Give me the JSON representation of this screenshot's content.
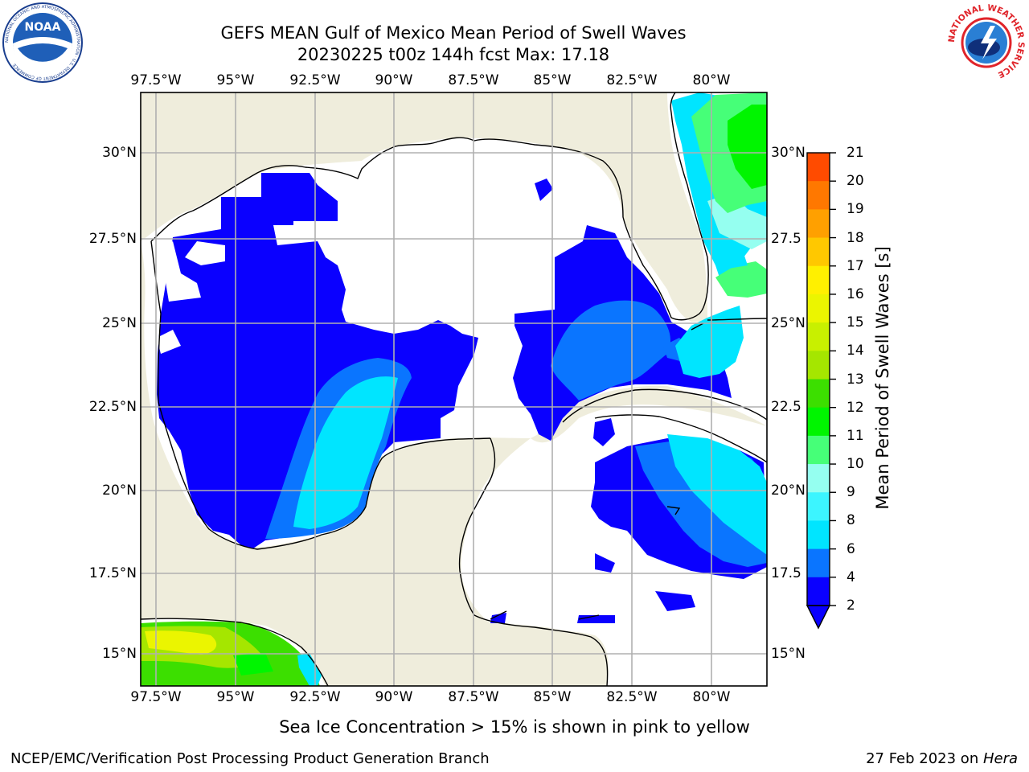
{
  "header": {
    "title_line1": "GEFS MEAN Gulf of Mexico Mean Period of Swell Waves",
    "title_line2": "20230225 t00z 144h fcst   Max: 17.18"
  },
  "logos": {
    "noaa_text": "NOAA",
    "noaa_ring_text": "NATIONAL OCEANIC AND ATMOSPHERIC ADMINISTRATION · U.S. DEPARTMENT OF COMMERCE",
    "nws_ring_text": "NATIONAL WEATHER SERVICE"
  },
  "map": {
    "lon_labels": [
      "97.5°W",
      "95°W",
      "92.5°W",
      "90°W",
      "87.5°W",
      "85°W",
      "82.5°W",
      "80°W"
    ],
    "lat_labels_left": [
      "30°N",
      "27.5°N",
      "25°N",
      "22.5°N",
      "20°N",
      "17.5°N",
      "15°N"
    ],
    "lat_labels_right": [
      "30°N",
      "27.5",
      "25°N",
      "22.5",
      "20°N",
      "17.5",
      "15°N"
    ],
    "colors": {
      "land": "#efeddc",
      "ocean_no_data": "#ffffff",
      "grid": "#b0b0b0",
      "coast": "#000000"
    }
  },
  "colorbar": {
    "label": "Mean Period of Swell Waves [s]",
    "ticks": [
      "2",
      "4",
      "6",
      "8",
      "9",
      "10",
      "11",
      "12",
      "13",
      "14",
      "15",
      "16",
      "17",
      "18",
      "19",
      "20",
      "21"
    ],
    "colors": [
      "#0a00ff",
      "#0a75ff",
      "#00e5ff",
      "#3cf5ff",
      "#95fff0",
      "#46ff78",
      "#00f500",
      "#3cdf00",
      "#a5e600",
      "#c8f000",
      "#ebf500",
      "#fff000",
      "#ffc800",
      "#ffa000",
      "#ff7800",
      "#ff4b00",
      "#ff1e00",
      "#ff0000"
    ],
    "extend": "min"
  },
  "footer": {
    "sea_ice_note": "Sea Ice Concentration > 15% is shown in pink to yellow",
    "credit": "NCEP/EMC/Verification Post Processing Product Generation Branch",
    "date": "27 Feb 2023 on ",
    "host": "Hera"
  }
}
